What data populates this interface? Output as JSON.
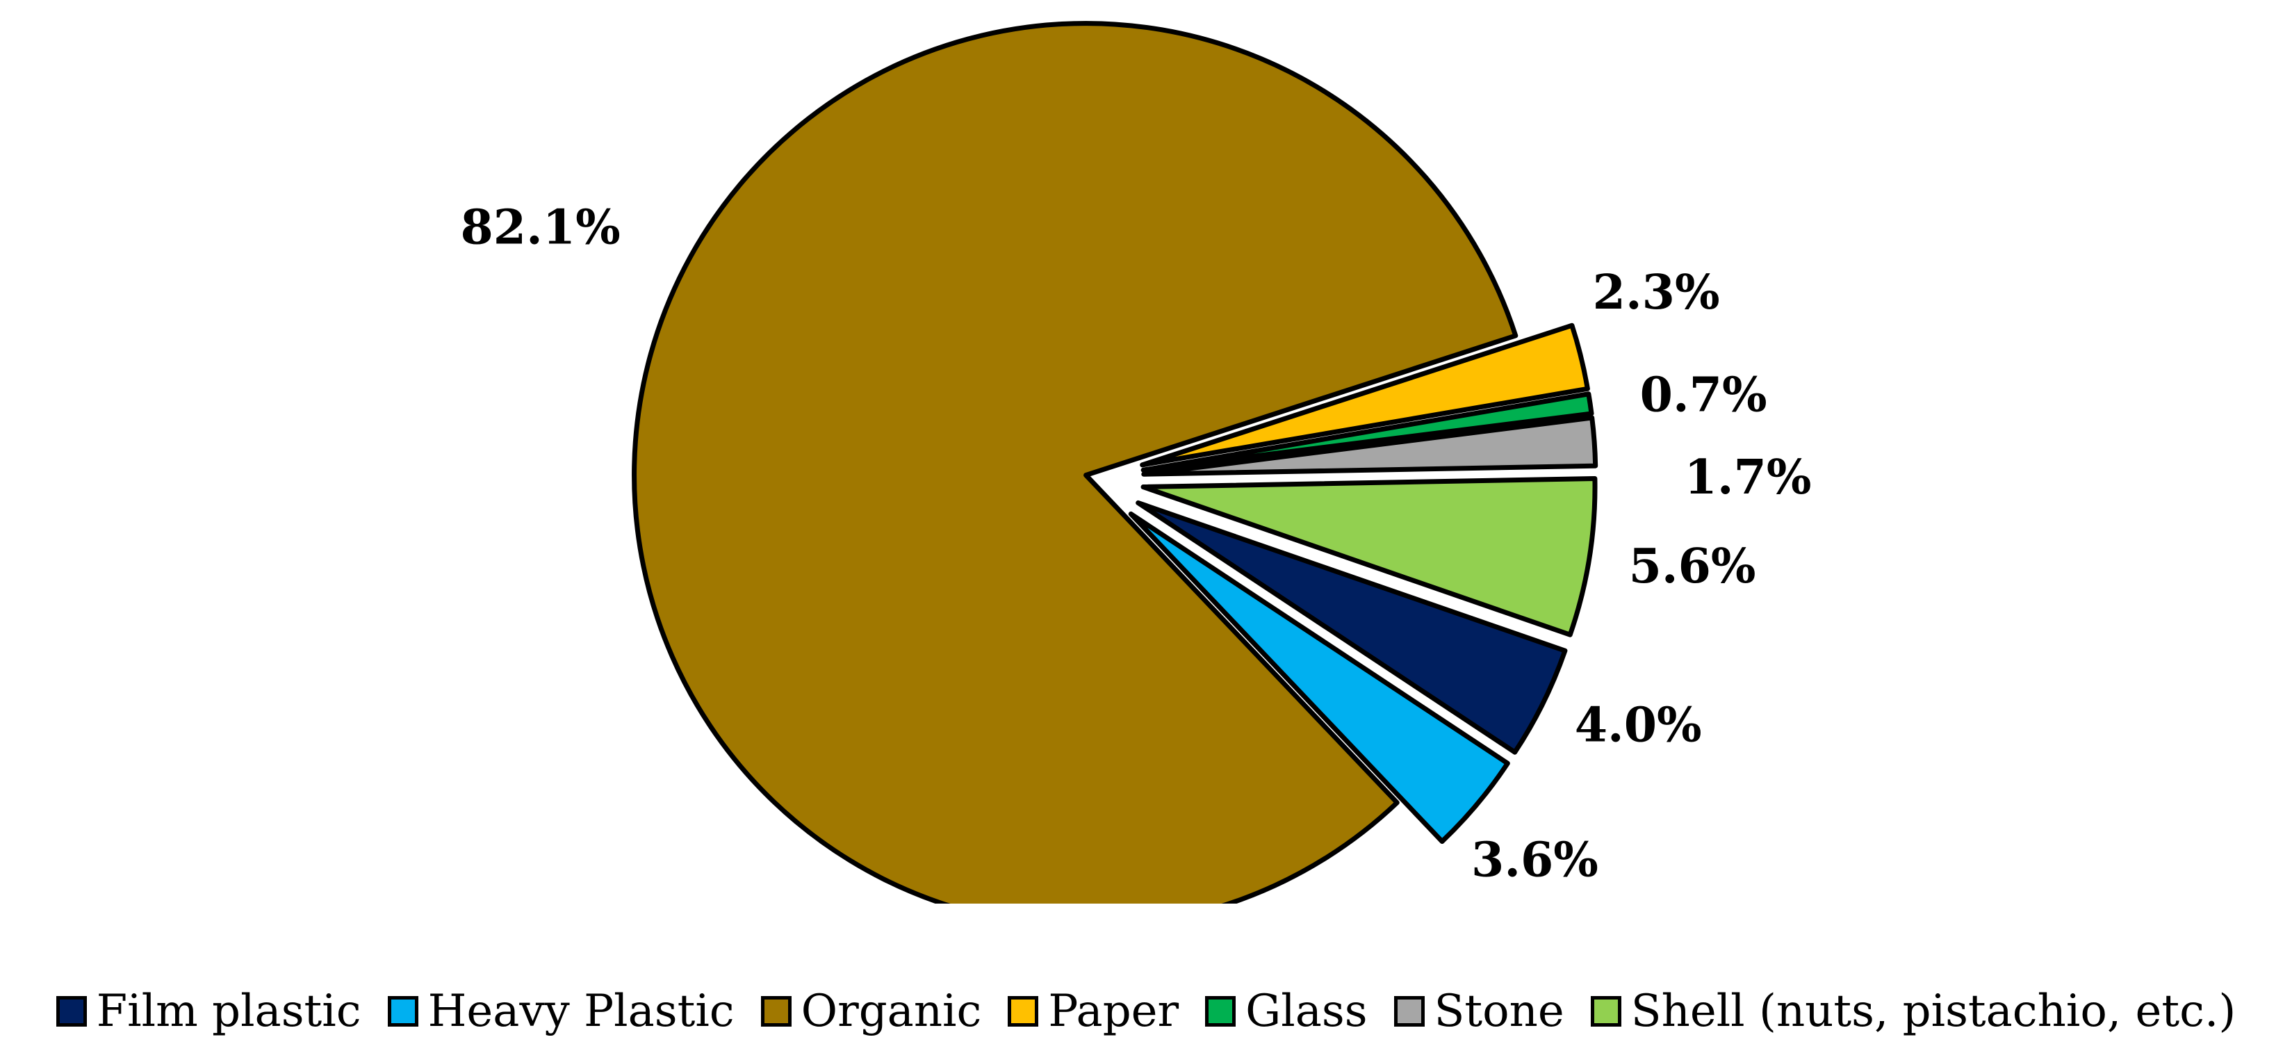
{
  "chart_data": {
    "type": "pie",
    "title": "",
    "categories": [
      "Film plastic",
      "Heavy Plastic",
      "Organic",
      "Paper",
      "Glass",
      "Stone",
      "Shell (nuts, pistachio, etc.)"
    ],
    "values": [
      4.0,
      3.6,
      82.1,
      2.3,
      0.7,
      1.7,
      5.6
    ],
    "labels": [
      "4.0%",
      "3.6%",
      "82.1%",
      "2.3%",
      "0.7%",
      "1.7%",
      "5.6%"
    ],
    "colors": [
      "#001f5f",
      "#00b0f0",
      "#a07800",
      "#ffc000",
      "#00b050",
      "#a6a6a6",
      "#92d050"
    ],
    "exploded": true,
    "legend_position": "bottom"
  },
  "legend": {
    "items": [
      {
        "label": "Film plastic",
        "color": "#001f5f"
      },
      {
        "label": "Heavy Plastic",
        "color": "#00b0f0"
      },
      {
        "label": "Organic",
        "color": "#a07800"
      },
      {
        "label": "Paper",
        "color": "#ffc000"
      },
      {
        "label": "Glass",
        "color": "#00b050"
      },
      {
        "label": "Stone",
        "color": "#a6a6a6"
      },
      {
        "label": "Shell (nuts, pistachio, etc.)",
        "color": "#92d050"
      }
    ]
  }
}
